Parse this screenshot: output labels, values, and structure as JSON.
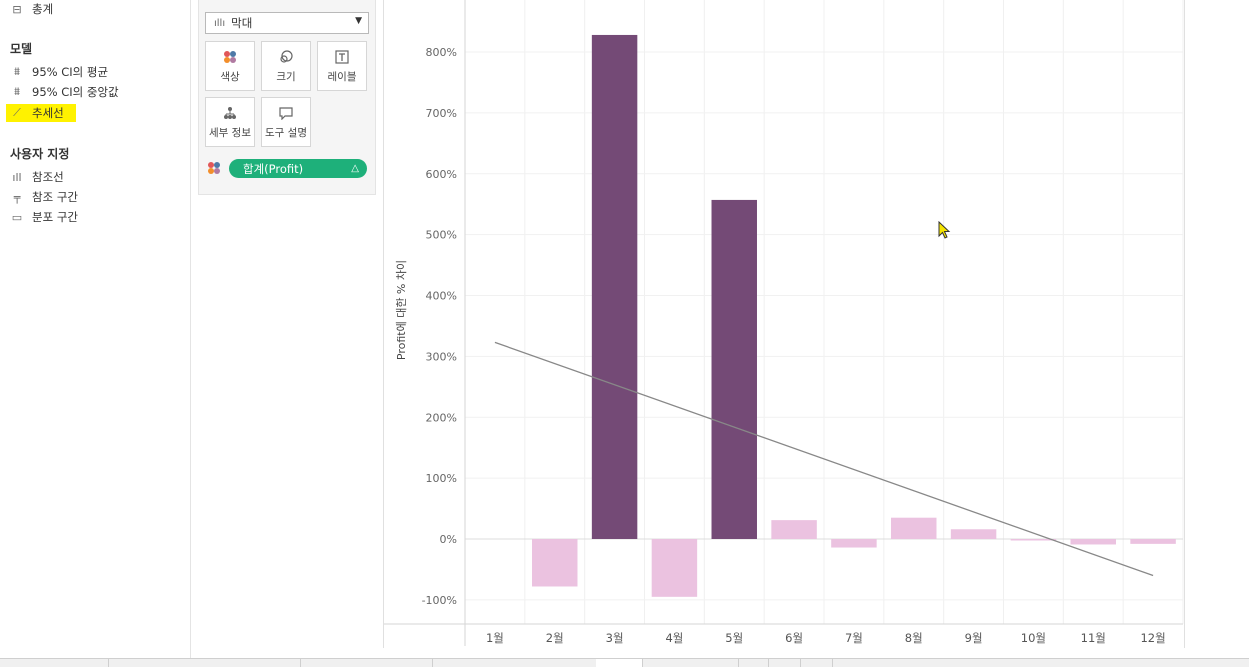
{
  "left_panel": {
    "top_item": {
      "icon": "totals-icon",
      "label": "총계"
    },
    "model_header": "모델",
    "model_items": [
      {
        "icon": "ci-icon",
        "label": "95% CI의 평균"
      },
      {
        "icon": "ci-icon",
        "label": "95% CI의 중앙값"
      },
      {
        "icon": "trend-line-icon",
        "label": "추세선",
        "highlighted": true
      }
    ],
    "custom_header": "사용자 지정",
    "custom_items": [
      {
        "icon": "reference-line-icon",
        "label": "참조선"
      },
      {
        "icon": "reference-band-icon",
        "label": "참조 구간"
      },
      {
        "icon": "distribution-band-icon",
        "label": "분포 구간"
      }
    ]
  },
  "marks": {
    "type_label": "막대",
    "buttons": [
      {
        "name": "color",
        "label": "색상",
        "icon": "color-dots-icon"
      },
      {
        "name": "size",
        "label": "크기",
        "icon": "size-icon"
      },
      {
        "name": "label",
        "label": "레이블",
        "icon": "text-label-icon"
      },
      {
        "name": "detail",
        "label": "세부 정보",
        "icon": "detail-icon"
      },
      {
        "name": "tooltip",
        "label": "도구 설명",
        "icon": "tooltip-icon"
      }
    ],
    "pill": {
      "label": "합계(Profit)",
      "badge": "△",
      "color": "#1eb07a"
    }
  },
  "chart_data": {
    "type": "bar",
    "ylabel": "Profit에 대한 % 차이",
    "categories": [
      "1월",
      "2월",
      "3월",
      "4월",
      "5월",
      "6월",
      "7월",
      "8월",
      "9월",
      "10월",
      "11월",
      "12월"
    ],
    "values": [
      0,
      -78,
      828,
      -95,
      557,
      31,
      -14,
      35,
      16,
      -2,
      -9,
      -8
    ],
    "ylim": [
      -120,
      870
    ],
    "yticks": [
      -100,
      0,
      100,
      200,
      300,
      400,
      500,
      600,
      700,
      800
    ],
    "ytick_labels": [
      "-100%",
      "0%",
      "100%",
      "200%",
      "300%",
      "400%",
      "500%",
      "600%",
      "700%",
      "800%"
    ],
    "trend_line": {
      "start": 323,
      "end": -60
    },
    "colors": {
      "high": "#744a76",
      "low": "#ebc2e0",
      "trend": "#888888"
    }
  }
}
